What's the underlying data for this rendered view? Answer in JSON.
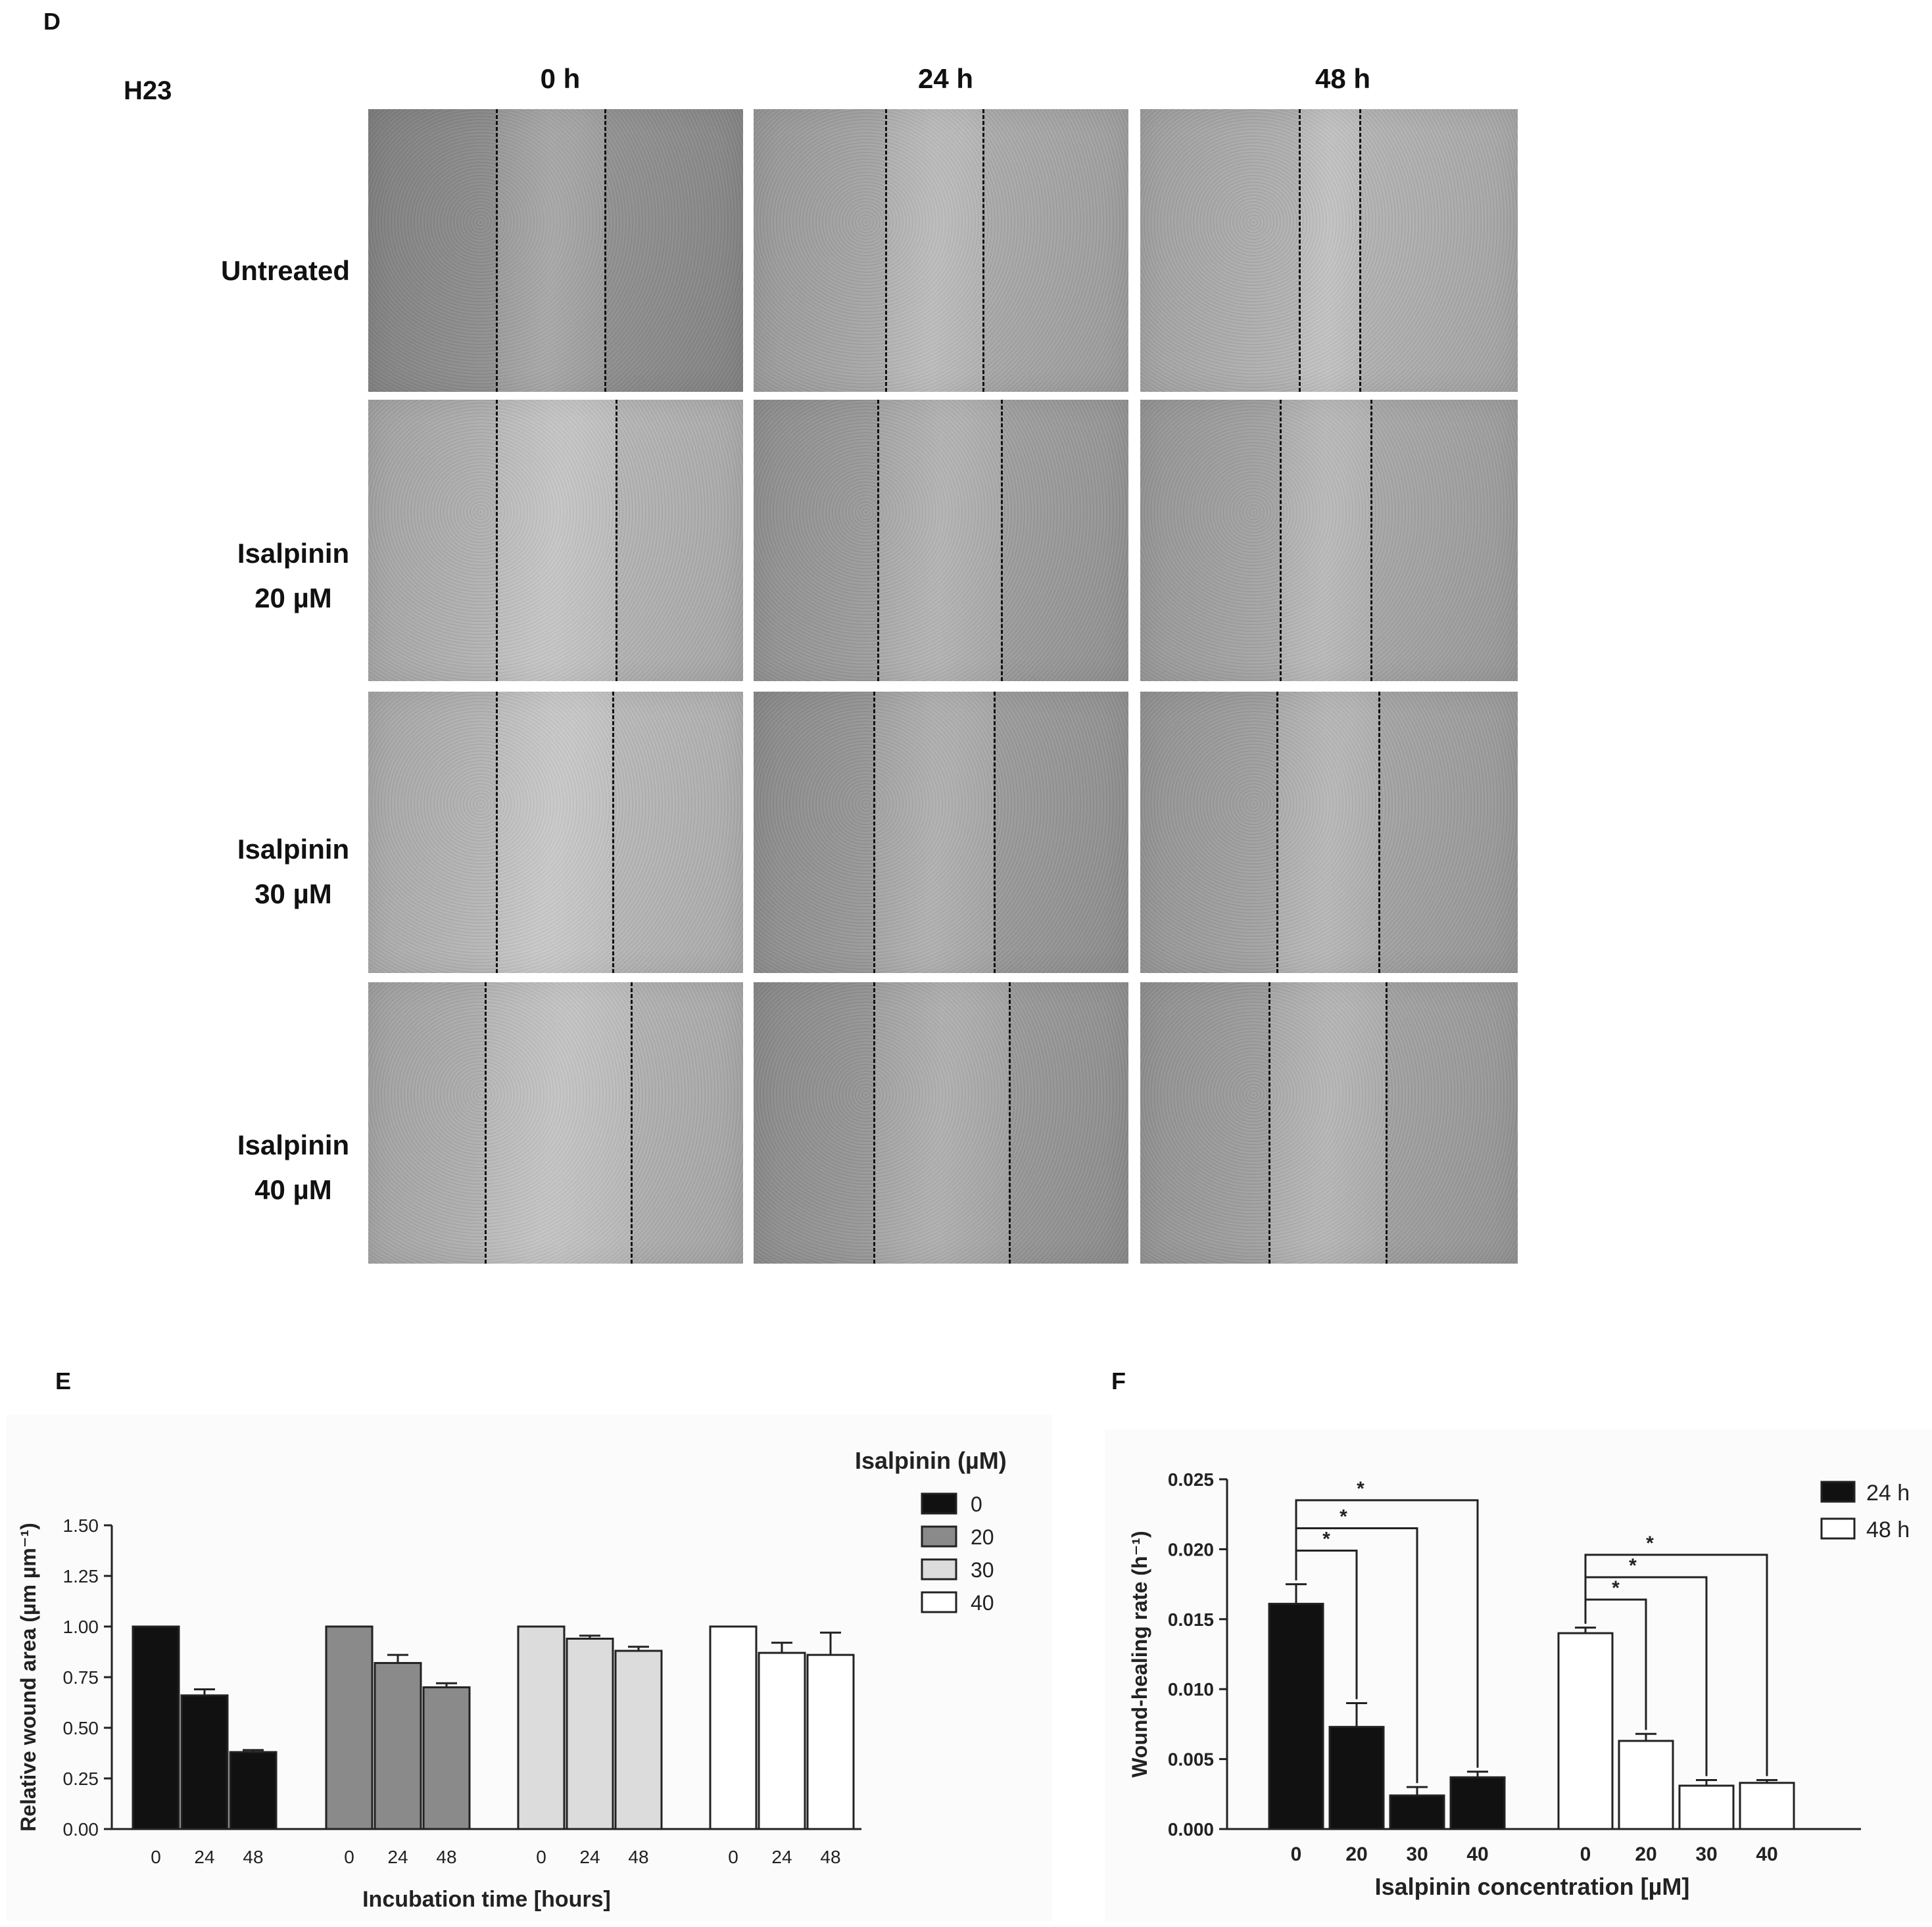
{
  "panel_d": {
    "letter": "D",
    "cell_line": "H23",
    "columns": [
      "0 h",
      "24 h",
      "48 h"
    ],
    "rows": [
      {
        "lines": [
          "Untreated"
        ]
      },
      {
        "lines": [
          "Isalpinin",
          "20 µM"
        ]
      },
      {
        "lines": [
          "Isalpinin",
          "30 µM"
        ]
      },
      {
        "lines": [
          "Isalpinin",
          "40 µM"
        ]
      }
    ]
  },
  "panel_e": {
    "letter": "E"
  },
  "panel_f": {
    "letter": "F"
  },
  "chart_data": [
    {
      "type": "bar",
      "panel": "E",
      "xlabel": "Incubation time [hours]",
      "ylabel": "Relative wound area (µm µm⁻¹)",
      "ylim": [
        0,
        1.5
      ],
      "yticks": [
        "0.00",
        "0.25",
        "0.50",
        "0.75",
        "1.00",
        "1.25",
        "1.50"
      ],
      "legend_title": "Isalpinin (µM)",
      "legend_position": "top-right",
      "groups": [
        {
          "name": "0",
          "color": "#111111",
          "categories": [
            "0",
            "24",
            "48"
          ],
          "values": [
            1.0,
            0.66,
            0.38
          ],
          "errors": [
            0,
            0.03,
            0.01
          ]
        },
        {
          "name": "20",
          "color": "#8a8a8a",
          "categories": [
            "0",
            "24",
            "48"
          ],
          "values": [
            1.0,
            0.82,
            0.7
          ],
          "errors": [
            0,
            0.04,
            0.02
          ]
        },
        {
          "name": "30",
          "color": "#dcdcdc",
          "categories": [
            "0",
            "24",
            "48"
          ],
          "values": [
            1.0,
            0.94,
            0.88
          ],
          "errors": [
            0,
            0.015,
            0.02
          ]
        },
        {
          "name": "40",
          "color": "#ffffff",
          "categories": [
            "0",
            "24",
            "48"
          ],
          "values": [
            1.0,
            0.87,
            0.86
          ],
          "errors": [
            0,
            0.05,
            0.11
          ]
        }
      ]
    },
    {
      "type": "bar",
      "panel": "F",
      "xlabel": "Isalpinin concentration [µM]",
      "ylabel": "Wound-healing rate (h⁻¹)",
      "ylim": [
        0,
        0.025
      ],
      "yticks": [
        "0.000",
        "0.005",
        "0.010",
        "0.015",
        "0.020",
        "0.025"
      ],
      "legend_position": "top-right",
      "series": [
        {
          "name": "24 h",
          "color": "#111111",
          "categories": [
            "0",
            "20",
            "30",
            "40"
          ],
          "values": [
            0.0161,
            0.0073,
            0.0024,
            0.0037
          ],
          "errors": [
            0.0014,
            0.0017,
            0.0006,
            0.0004
          ]
        },
        {
          "name": "48 h",
          "color": "#ffffff",
          "categories": [
            "0",
            "20",
            "30",
            "40"
          ],
          "values": [
            0.014,
            0.0063,
            0.0031,
            0.0033
          ],
          "errors": [
            0.0004,
            0.0005,
            0.0004,
            0.0002
          ]
        }
      ],
      "significance_marker": "*"
    }
  ]
}
